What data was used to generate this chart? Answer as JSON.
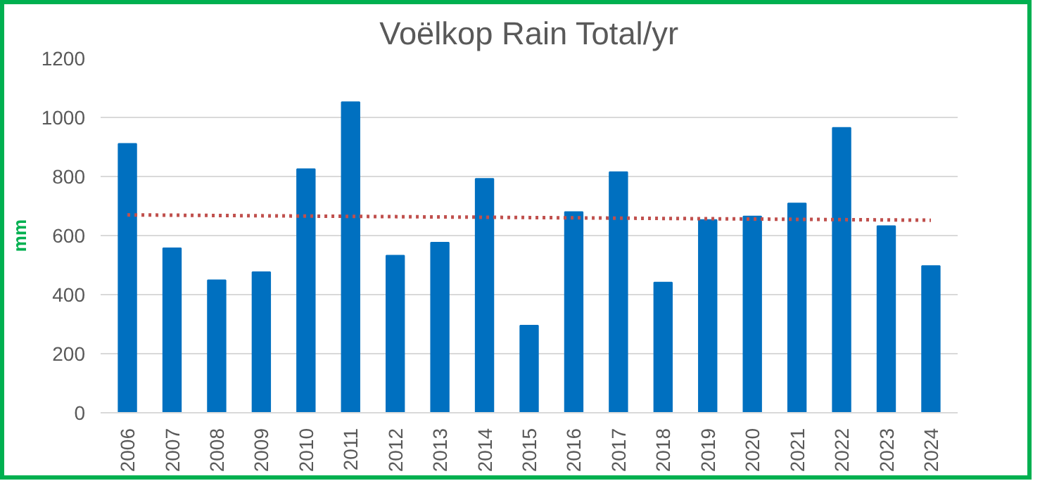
{
  "chart_data": {
    "type": "bar",
    "title": "Voëlkop Rain Total/yr",
    "ylabel": "mm",
    "categories": [
      "2006",
      "2007",
      "2008",
      "2009",
      "2010",
      "2011",
      "2012",
      "2013",
      "2014",
      "2015",
      "2016",
      "2017",
      "2018",
      "2019",
      "2020",
      "2021",
      "2022",
      "2023",
      "2024"
    ],
    "series": [
      {
        "color": "#0070c0",
        "values": [
          911,
          557,
          449,
          476,
          825,
          1052,
          532,
          576,
          792,
          295,
          680,
          815,
          441,
          653,
          665,
          709,
          965,
          632,
          497
        ]
      },
      {
        "type": "line",
        "color": "#c0504d",
        "line_style": "dotted",
        "values": [
          670,
          669,
          668,
          667,
          666,
          665,
          664,
          663,
          662,
          661,
          660,
          659,
          658,
          657,
          656,
          655,
          654,
          653,
          652
        ]
      }
    ],
    "ylim": [
      0,
      1200
    ],
    "yticks": [
      0,
      200,
      400,
      600,
      800,
      1000,
      1200
    ],
    "grid": "y"
  }
}
